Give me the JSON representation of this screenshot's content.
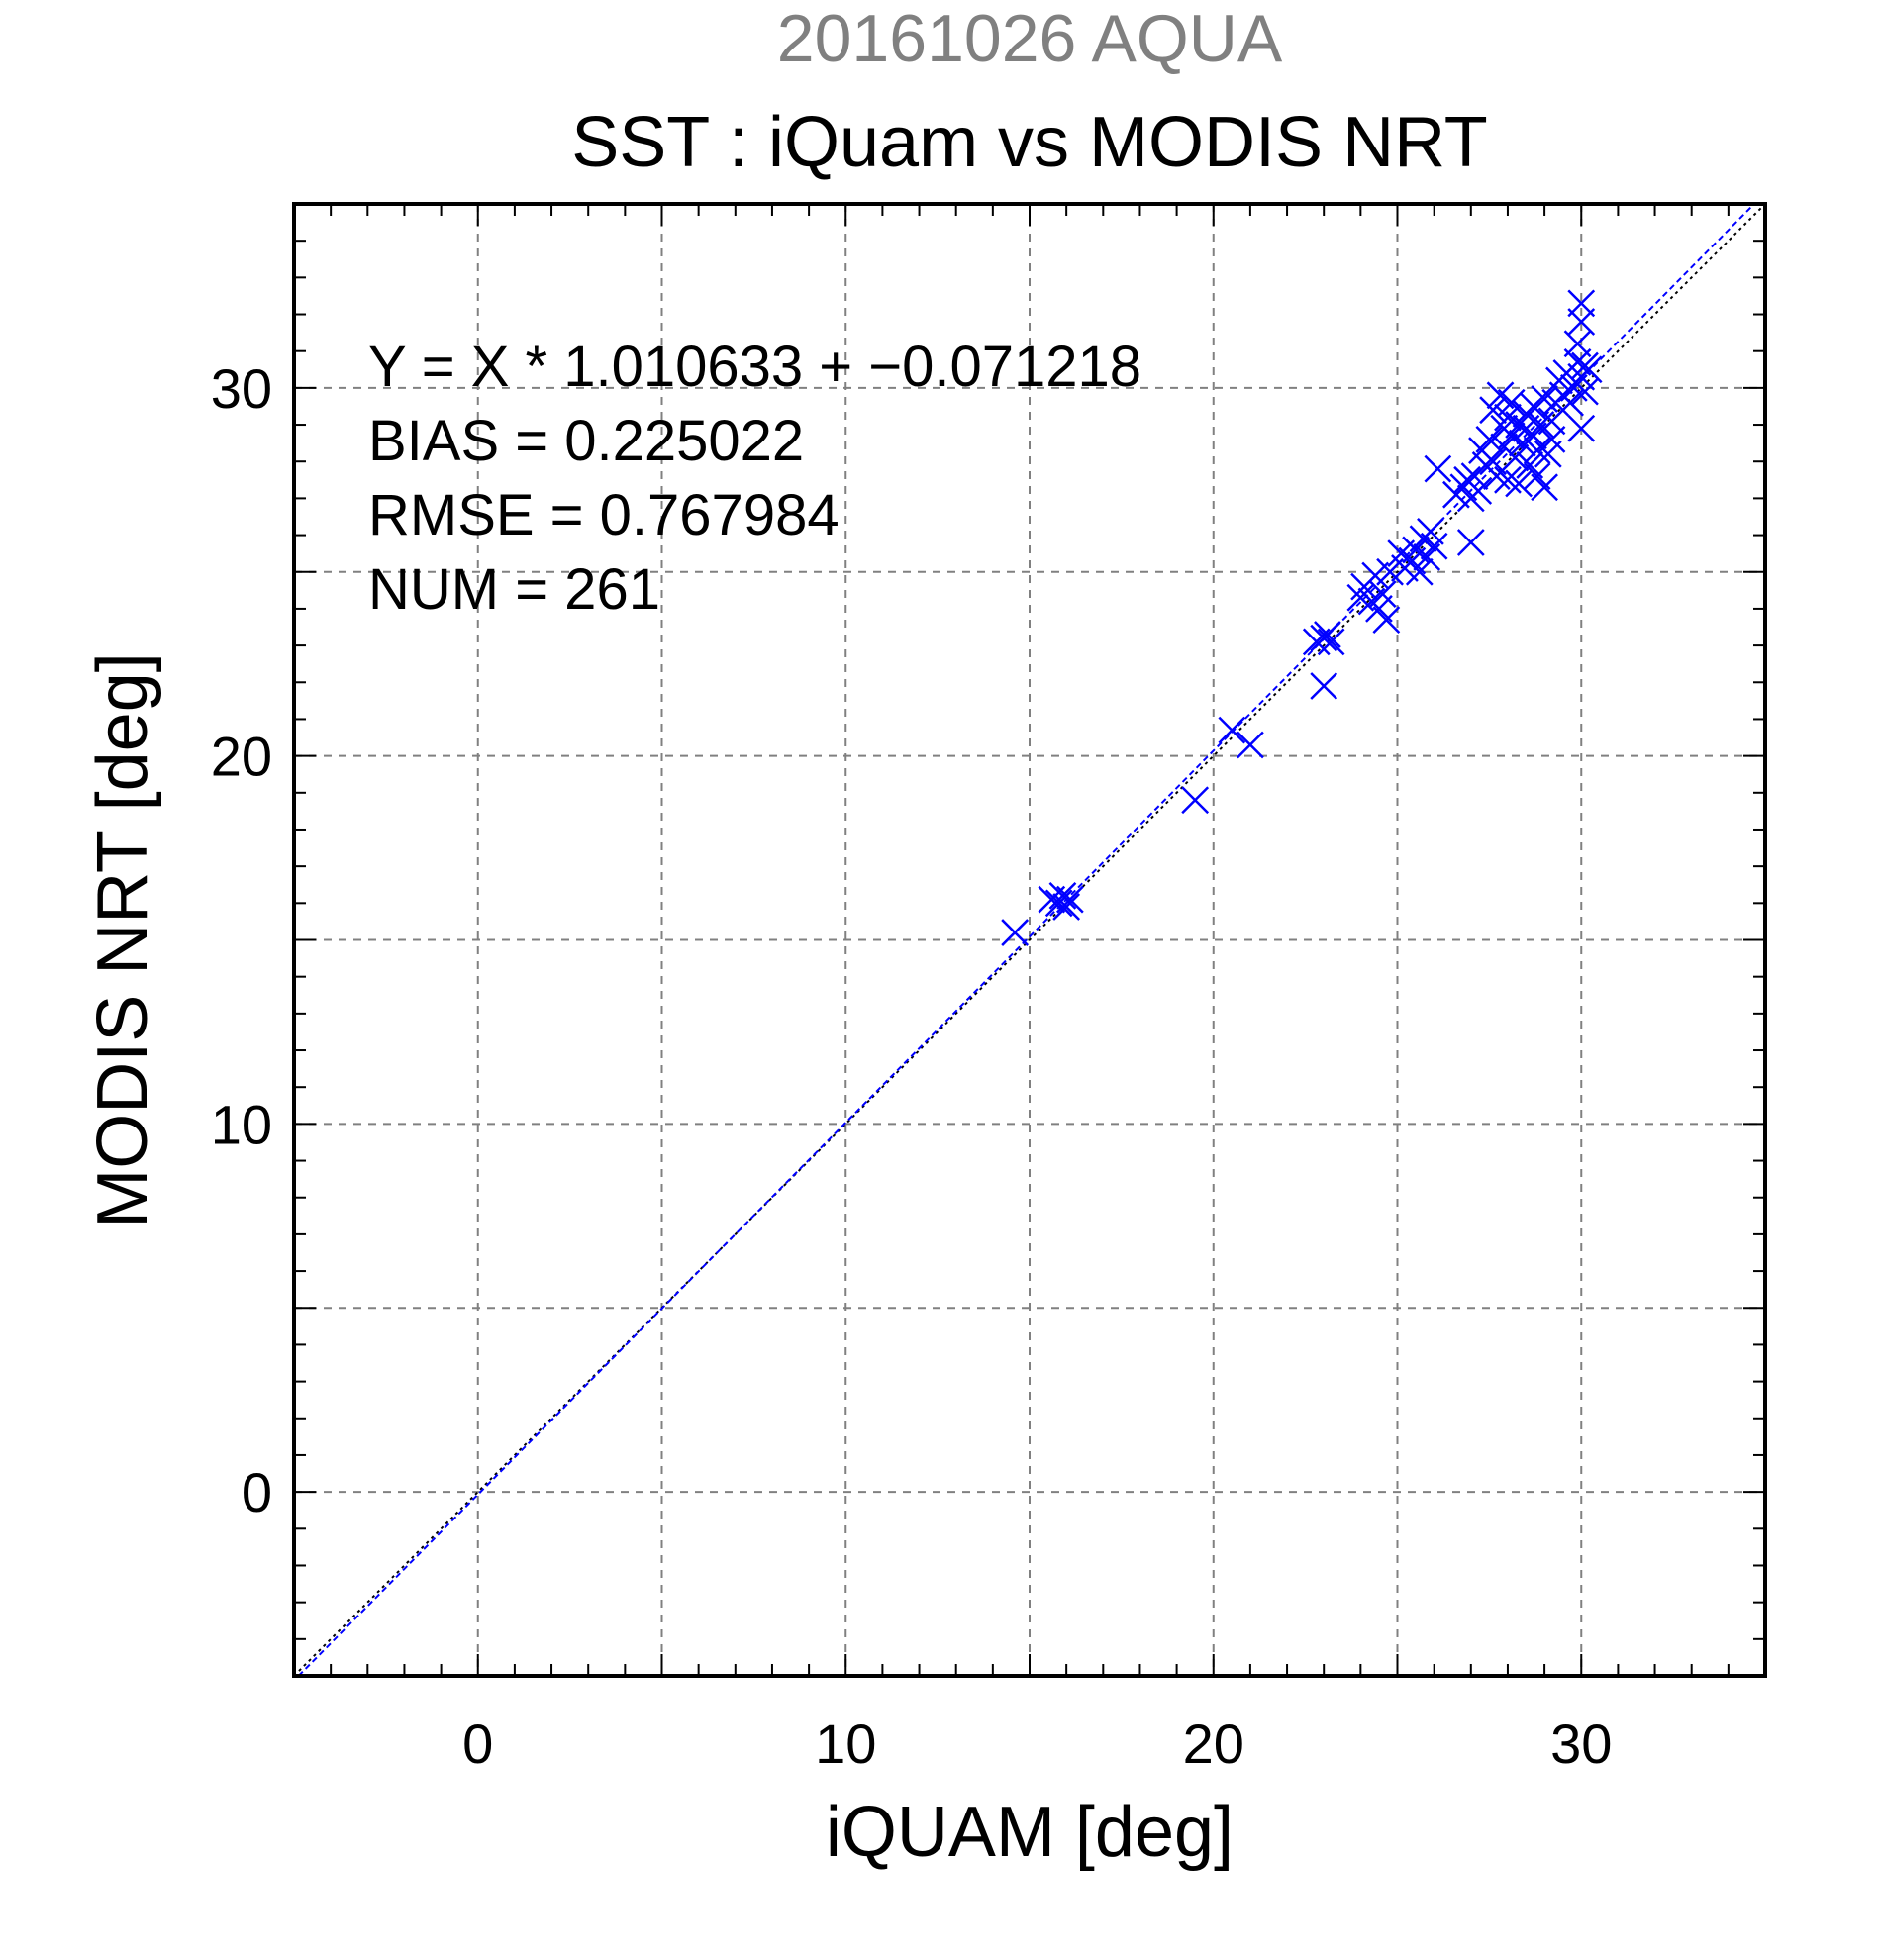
{
  "header": {
    "date_title": "20161026 AQUA",
    "main_title": "SST : iQuam vs MODIS NRT"
  },
  "stats": {
    "equation": "Y = X * 1.010633 + −0.071218",
    "bias": "BIAS = 0.225022",
    "rmse": "RMSE = 0.767984",
    "num": "NUM = 261"
  },
  "colors": {
    "series": "#0000ff",
    "date_title": "#808080",
    "grid": "#808080",
    "regression_line": "#0000ff",
    "identity_line": "#000000"
  },
  "chart_data": {
    "type": "scatter",
    "xlabel": "iQUAM [deg]",
    "ylabel": "MODIS NRT [deg]",
    "xlim": [
      -5,
      35
    ],
    "ylim": [
      -5,
      35
    ],
    "xticks": [
      0,
      10,
      20,
      30
    ],
    "yticks": [
      0,
      10,
      20,
      30
    ],
    "xtick_labels": [
      "0",
      "10",
      "20",
      "30"
    ],
    "ytick_labels": [
      "0",
      "10",
      "20",
      "30"
    ],
    "grid": true,
    "marker": "x",
    "regression": {
      "slope": 1.010633,
      "intercept": -0.071218
    },
    "series": [
      {
        "points": [
          [
            14.6,
            15.2
          ],
          [
            15.6,
            16.1
          ],
          [
            15.8,
            16.0
          ],
          [
            15.9,
            16.2
          ],
          [
            16.0,
            15.9
          ],
          [
            16.1,
            16.1
          ],
          [
            19.5,
            18.8
          ],
          [
            20.5,
            20.7
          ],
          [
            21.0,
            20.3
          ],
          [
            22.8,
            23.1
          ],
          [
            23.0,
            23.2
          ],
          [
            23.1,
            23.3
          ],
          [
            23.2,
            23.1
          ],
          [
            23.0,
            21.9
          ],
          [
            24.0,
            24.3
          ],
          [
            24.1,
            24.6
          ],
          [
            24.3,
            24.2
          ],
          [
            24.4,
            24.9
          ],
          [
            24.5,
            24.0
          ],
          [
            24.6,
            24.4
          ],
          [
            24.7,
            23.7
          ],
          [
            24.8,
            25.0
          ],
          [
            25.1,
            25.5
          ],
          [
            25.2,
            25.1
          ],
          [
            25.4,
            25.3
          ],
          [
            25.5,
            25.6
          ],
          [
            25.6,
            25.0
          ],
          [
            25.7,
            25.9
          ],
          [
            25.8,
            25.4
          ],
          [
            25.9,
            26.1
          ],
          [
            26.0,
            25.7
          ],
          [
            26.1,
            27.8
          ],
          [
            26.6,
            27.1
          ],
          [
            26.8,
            27.3
          ],
          [
            26.9,
            27.5
          ],
          [
            27.0,
            27.0
          ],
          [
            27.0,
            25.8
          ],
          [
            27.1,
            27.6
          ],
          [
            27.2,
            27.2
          ],
          [
            27.3,
            28.3
          ],
          [
            27.4,
            27.9
          ],
          [
            27.5,
            28.6
          ],
          [
            27.6,
            29.4
          ],
          [
            27.6,
            28.0
          ],
          [
            27.7,
            27.6
          ],
          [
            27.8,
            29.8
          ],
          [
            27.9,
            28.4
          ],
          [
            27.9,
            28.9
          ],
          [
            28.0,
            29.2
          ],
          [
            28.0,
            27.5
          ],
          [
            28.1,
            28.7
          ],
          [
            28.1,
            29.6
          ],
          [
            28.2,
            28.1
          ],
          [
            28.3,
            29.0
          ],
          [
            28.3,
            27.4
          ],
          [
            28.4,
            28.5
          ],
          [
            28.5,
            29.3
          ],
          [
            28.5,
            28.9
          ],
          [
            28.6,
            27.9
          ],
          [
            28.7,
            29.5
          ],
          [
            28.7,
            28.7
          ],
          [
            28.8,
            27.6
          ],
          [
            28.8,
            28.3
          ],
          [
            28.9,
            29.0
          ],
          [
            29.0,
            27.3
          ],
          [
            29.0,
            29.7
          ],
          [
            29.1,
            28.2
          ],
          [
            29.2,
            29.1
          ],
          [
            29.2,
            28.6
          ],
          [
            29.3,
            29.6
          ],
          [
            29.4,
            30.2
          ],
          [
            29.5,
            29.8
          ],
          [
            29.6,
            30.4
          ],
          [
            29.7,
            29.6
          ],
          [
            29.8,
            30.0
          ],
          [
            29.9,
            30.7
          ],
          [
            30.0,
            30.3
          ],
          [
            30.0,
            28.9
          ],
          [
            30.0,
            31.8
          ],
          [
            30.1,
            29.9
          ],
          [
            30.1,
            30.6
          ],
          [
            30.2,
            30.5
          ],
          [
            30.0,
            32.3
          ],
          [
            29.9,
            31.2
          ]
        ]
      }
    ]
  }
}
